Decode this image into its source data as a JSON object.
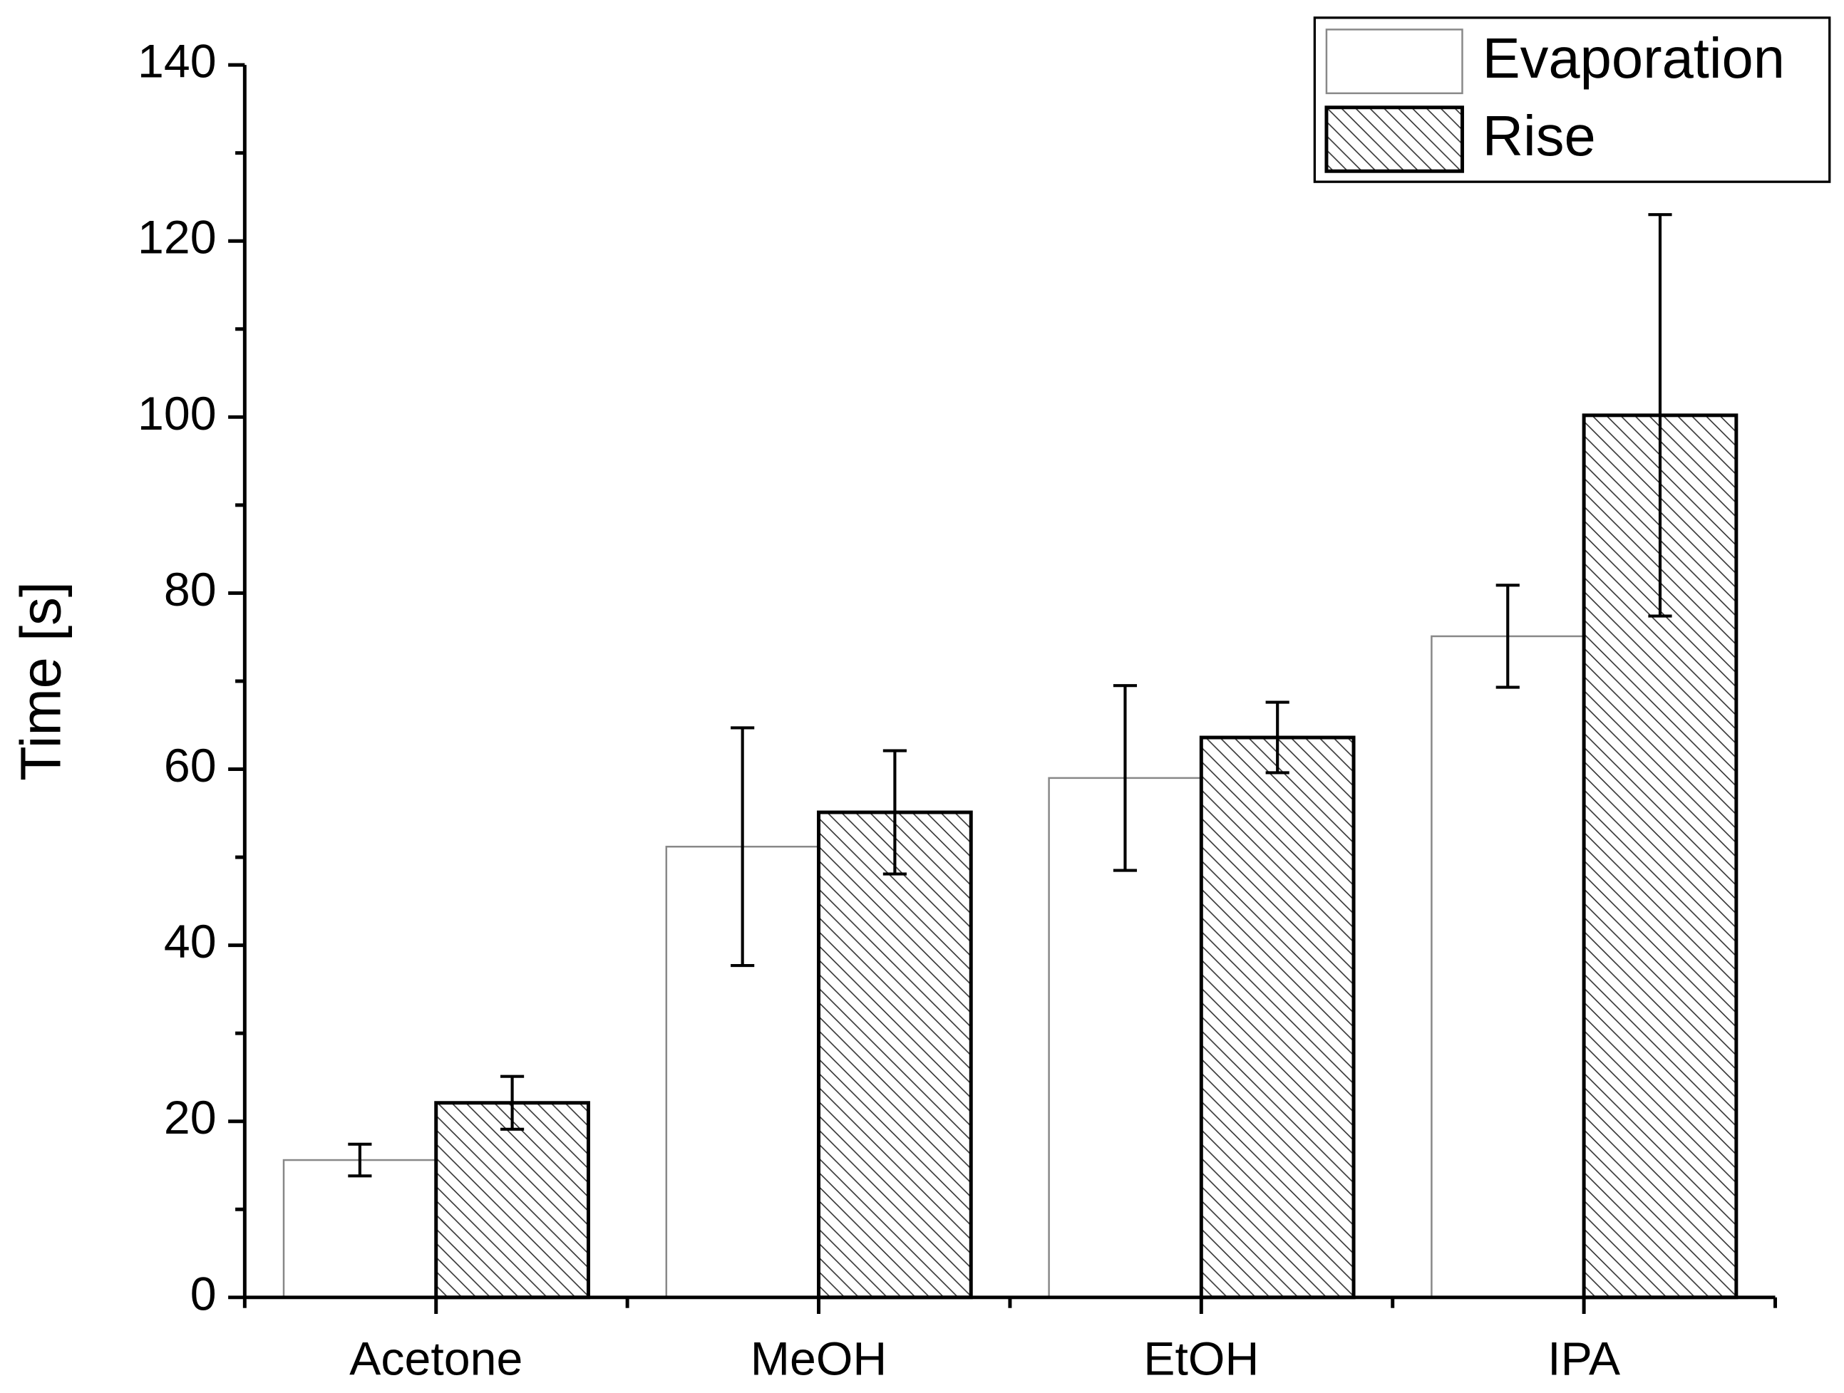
{
  "chart_data": {
    "type": "bar",
    "y_label": "Time [s]",
    "categories": [
      "Acetone",
      "MeOH",
      "EtOH",
      "IPA"
    ],
    "series": [
      {
        "name": "Evaporation",
        "color": "#ffffff",
        "edge": "#888888",
        "hatch": false,
        "values": [
          15.6,
          51.2,
          59.0,
          75.1
        ],
        "errors": [
          1.8,
          13.5,
          10.5,
          5.8
        ]
      },
      {
        "name": "Rise",
        "color": "#ffffff",
        "edge": "#000000",
        "hatch": true,
        "values": [
          22.1,
          55.1,
          63.6,
          100.2
        ],
        "errors": [
          3.0,
          7.0,
          4.0,
          22.8
        ]
      }
    ],
    "ylim": [
      0,
      140
    ],
    "yticks": [
      0,
      20,
      40,
      60,
      80,
      100,
      120,
      140
    ],
    "grid": false,
    "legend": "upper right"
  }
}
